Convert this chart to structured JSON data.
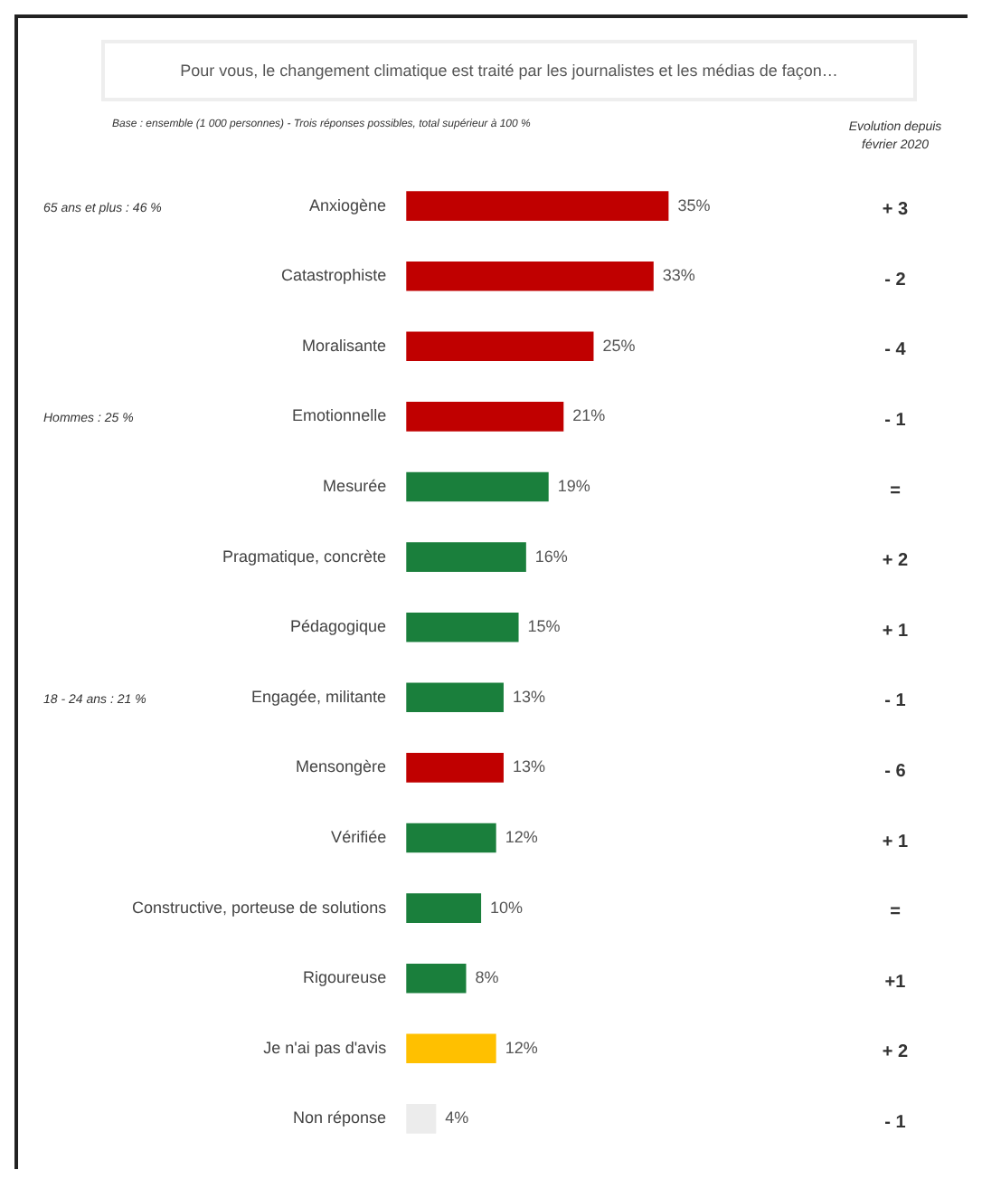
{
  "chart_data": {
    "type": "bar",
    "orientation": "horizontal",
    "title": "Pour vous, le changement climatique est traité par les journalistes et les médias de façon…",
    "subtitle": "Base : ensemble (1 000 personnes) - Trois réponses possibles, total supérieur à 100 %",
    "categories": [
      "Anxiogène",
      "Catastrophiste",
      "Moralisante",
      "Emotionnelle",
      "Mesurée",
      "Pragmatique, concrète",
      "Pédagogique",
      "Engagée, militante",
      "Mensongère",
      "Vérifiée",
      "Constructive, porteuse de solutions",
      "Rigoureuse",
      "Je n'ai pas d'avis",
      "Non réponse"
    ],
    "values": [
      35,
      33,
      25,
      21,
      19,
      16,
      15,
      13,
      13,
      12,
      10,
      8,
      12,
      4
    ],
    "value_labels": [
      "35%",
      "33%",
      "25%",
      "21%",
      "19%",
      "16%",
      "15%",
      "13%",
      "13%",
      "12%",
      "10%",
      "8%",
      "12%",
      "4%"
    ],
    "colors": [
      "#c00000",
      "#c00000",
      "#c00000",
      "#c00000",
      "#1a7f3c",
      "#1a7f3c",
      "#1a7f3c",
      "#1a7f3c",
      "#c00000",
      "#1a7f3c",
      "#1a7f3c",
      "#1a7f3c",
      "#ffc000",
      "#ececec"
    ],
    "annotations": [
      "Evolution depuis février 2020",
      "+ 3",
      "- 2",
      "- 4",
      "- 1",
      "=",
      "+ 2",
      "+ 1",
      "- 1",
      "- 6",
      "+ 1",
      "=",
      "+1",
      "+ 2",
      "- 1",
      "65 ans et plus : 46 %",
      "Hommes : 25 %",
      "18 - 24 ans : 21 %"
    ],
    "legend": false
  }
}
